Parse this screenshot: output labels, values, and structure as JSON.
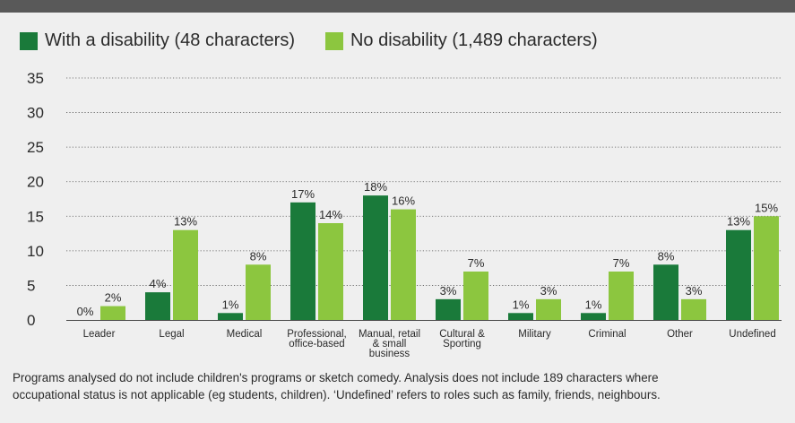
{
  "chart_data": {
    "type": "bar",
    "title": "",
    "xlabel": "",
    "ylabel": "",
    "ylim": [
      0,
      35
    ],
    "yticks": [
      0,
      5,
      10,
      15,
      20,
      25,
      30,
      35
    ],
    "grid": true,
    "legend_position": "top-left",
    "categories": [
      [
        "Leader"
      ],
      [
        "Legal"
      ],
      [
        "Medical"
      ],
      [
        "Professional,",
        "office-based"
      ],
      [
        "Manual, retail",
        "& small",
        "business"
      ],
      [
        "Cultural &",
        "Sporting"
      ],
      [
        "Military"
      ],
      [
        "Criminal"
      ],
      [
        "Other"
      ],
      [
        "Undefined"
      ]
    ],
    "series": [
      {
        "name": "With a disability (48 characters)",
        "color": "#1a7a3a",
        "values": [
          0,
          4,
          1,
          17,
          18,
          3,
          1,
          1,
          8,
          13
        ],
        "labels": [
          "0%",
          "4%",
          "1%",
          "17%",
          "18%",
          "3%",
          "1%",
          "1%",
          "8%",
          "13%"
        ]
      },
      {
        "name": "No disability (1,489 characters)",
        "color": "#8cc63f",
        "values": [
          2,
          13,
          8,
          14,
          16,
          7,
          3,
          7,
          3,
          15
        ],
        "labels": [
          "2%",
          "13%",
          "8%",
          "14%",
          "16%",
          "7%",
          "3%",
          "7%",
          "3%",
          "15%"
        ]
      }
    ]
  },
  "footnote": {
    "line1": "Programs analysed do not include children's programs or sketch comedy. Analysis does not include 189 characters where",
    "line2": "occupational status is not applicable (eg students, children). ‘Undefined’ refers to roles such as family, friends, neighbours."
  }
}
